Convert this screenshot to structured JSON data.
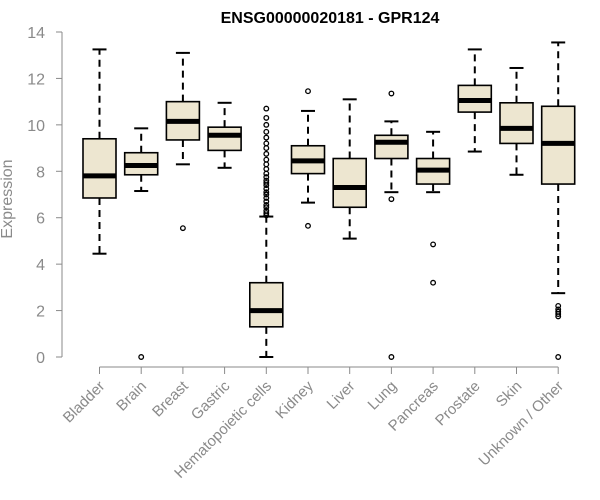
{
  "chart_data": {
    "type": "boxplot",
    "title": "ENSG00000020181 - GPR124",
    "ylabel": "Expression",
    "xlabel": "",
    "ylim": [
      0,
      14
    ],
    "yticks": [
      0,
      2,
      4,
      6,
      8,
      10,
      12,
      14
    ],
    "categories": [
      "Bladder",
      "Brain",
      "Breast",
      "Gastric",
      "Hematopoietic cells",
      "Kidney",
      "Liver",
      "Lung",
      "Pancreas",
      "Prostate",
      "Skin",
      "Unknown / Other"
    ],
    "box_fill": "#ede6d0",
    "box_stroke": "#000000",
    "boxes": [
      {
        "whisker_low": 4.45,
        "q1": 6.85,
        "median": 7.8,
        "q3": 9.4,
        "whisker_high": 13.25,
        "outliers": []
      },
      {
        "whisker_low": 7.15,
        "q1": 7.85,
        "median": 8.25,
        "q3": 8.8,
        "whisker_high": 9.85,
        "outliers": [
          0.0
        ]
      },
      {
        "whisker_low": 8.3,
        "q1": 9.35,
        "median": 10.15,
        "q3": 11.0,
        "whisker_high": 13.1,
        "outliers": [
          5.55
        ]
      },
      {
        "whisker_low": 8.15,
        "q1": 8.9,
        "median": 9.55,
        "q3": 9.9,
        "whisker_high": 10.95,
        "outliers": []
      },
      {
        "whisker_low": 0.0,
        "q1": 1.3,
        "median": 2.0,
        "q3": 3.2,
        "whisker_high": 6.05,
        "outliers": [
          6.1,
          6.2,
          6.3,
          6.45,
          6.55,
          6.7,
          6.85,
          7.0,
          7.1,
          7.25,
          7.4,
          7.5,
          7.6,
          7.75,
          7.9,
          8.1,
          8.3,
          8.5,
          8.75,
          9.0,
          9.2,
          9.45,
          9.7,
          10.0,
          10.3,
          10.7
        ]
      },
      {
        "whisker_low": 6.65,
        "q1": 7.9,
        "median": 8.45,
        "q3": 9.1,
        "whisker_high": 10.6,
        "outliers": [
          5.65,
          11.45
        ]
      },
      {
        "whisker_low": 5.1,
        "q1": 6.45,
        "median": 7.3,
        "q3": 8.55,
        "whisker_high": 11.1,
        "outliers": []
      },
      {
        "whisker_low": 7.1,
        "q1": 8.55,
        "median": 9.25,
        "q3": 9.55,
        "whisker_high": 10.15,
        "outliers": [
          0.0,
          6.8,
          11.35
        ]
      },
      {
        "whisker_low": 7.1,
        "q1": 7.45,
        "median": 8.05,
        "q3": 8.55,
        "whisker_high": 9.7,
        "outliers": [
          3.2,
          4.85
        ]
      },
      {
        "whisker_low": 8.85,
        "q1": 10.55,
        "median": 11.05,
        "q3": 11.7,
        "whisker_high": 13.25,
        "outliers": []
      },
      {
        "whisker_low": 7.85,
        "q1": 9.2,
        "median": 9.85,
        "q3": 10.95,
        "whisker_high": 12.45,
        "outliers": []
      },
      {
        "whisker_low": 2.75,
        "q1": 7.45,
        "median": 9.2,
        "q3": 10.8,
        "whisker_high": 13.55,
        "outliers": [
          0.0,
          1.75,
          1.85,
          1.95,
          2.05,
          2.2
        ]
      }
    ]
  }
}
